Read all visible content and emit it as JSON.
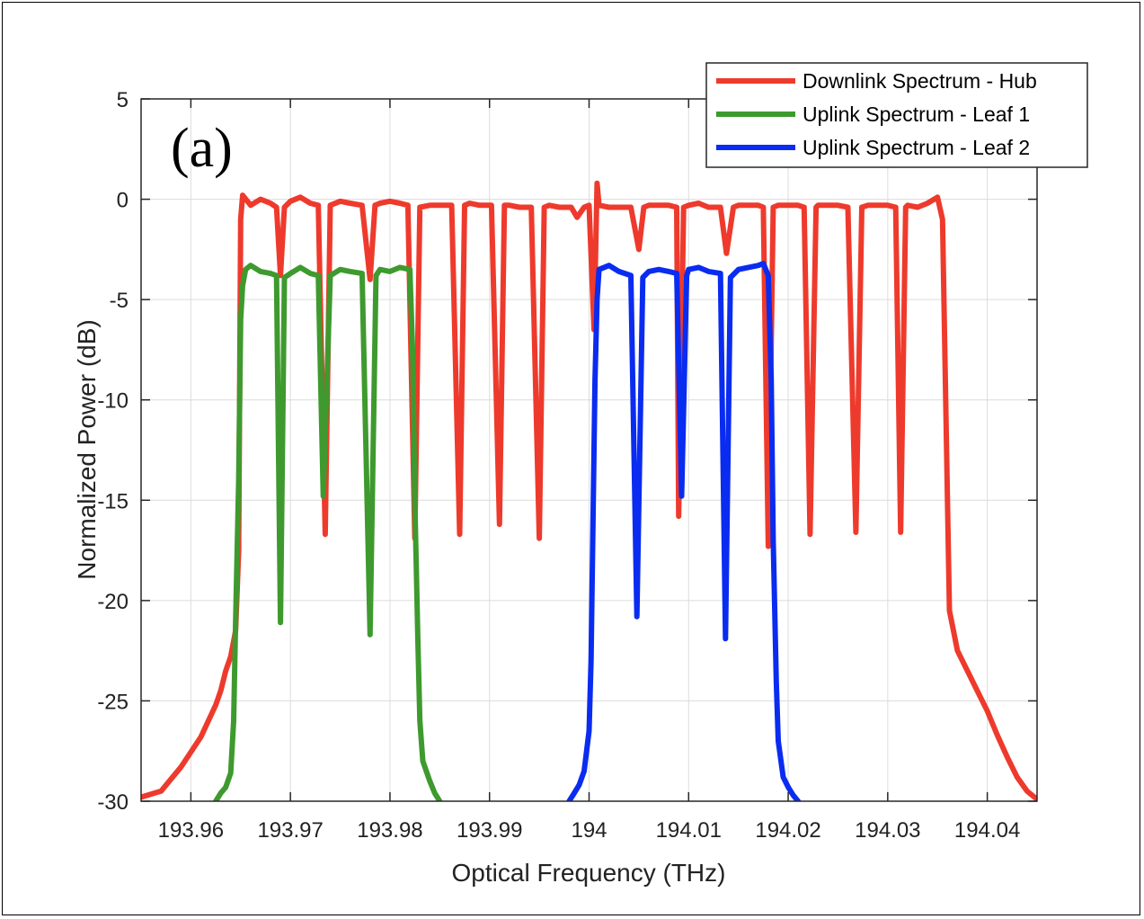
{
  "chart_data": {
    "type": "line",
    "panel_label": "(a)",
    "xlabel": "Optical Frequency (THz)",
    "ylabel": "Normalized Power (dB)",
    "xlim": [
      193.955,
      194.045
    ],
    "ylim": [
      -30,
      5
    ],
    "xticks": [
      193.96,
      193.97,
      193.98,
      193.99,
      194,
      194.01,
      194.02,
      194.03,
      194.04
    ],
    "xtick_labels": [
      "193.96",
      "193.97",
      "193.98",
      "193.99",
      "194",
      "194.01",
      "194.02",
      "194.03",
      "194.04"
    ],
    "yticks": [
      5,
      0,
      -5,
      -10,
      -15,
      -20,
      -25,
      -30
    ],
    "ytick_labels": [
      "5",
      "0",
      "-5",
      "-10",
      "-15",
      "-20",
      "-25",
      "-30"
    ],
    "grid": true,
    "legend_position": "top-right",
    "series": [
      {
        "name": "Downlink Spectrum - Hub",
        "color": "#ee3a2c",
        "points": [
          [
            193.955,
            -29.8
          ],
          [
            193.957,
            -29.5
          ],
          [
            193.959,
            -28.3
          ],
          [
            193.961,
            -26.8
          ],
          [
            193.9625,
            -25.2
          ],
          [
            193.963,
            -24.5
          ],
          [
            193.9635,
            -23.5
          ],
          [
            193.964,
            -22.8
          ],
          [
            193.9645,
            -21.5
          ],
          [
            193.9648,
            -17.5
          ],
          [
            193.965,
            -1.0
          ],
          [
            193.9652,
            0.2
          ],
          [
            193.966,
            -0.3
          ],
          [
            193.967,
            0.0
          ],
          [
            193.968,
            -0.2
          ],
          [
            193.9686,
            -0.4
          ],
          [
            193.969,
            -3.8
          ],
          [
            193.9694,
            -0.4
          ],
          [
            193.97,
            -0.1
          ],
          [
            193.971,
            0.1
          ],
          [
            193.972,
            -0.2
          ],
          [
            193.9728,
            -0.3
          ],
          [
            193.9735,
            -16.7
          ],
          [
            193.974,
            -0.3
          ],
          [
            193.975,
            -0.1
          ],
          [
            193.976,
            -0.2
          ],
          [
            193.9772,
            -0.3
          ],
          [
            193.978,
            -4.0
          ],
          [
            193.9785,
            -0.3
          ],
          [
            193.979,
            -0.2
          ],
          [
            193.98,
            -0.1
          ],
          [
            193.981,
            -0.2
          ],
          [
            193.9818,
            -0.3
          ],
          [
            193.9825,
            -16.9
          ],
          [
            193.983,
            -0.4
          ],
          [
            193.984,
            -0.3
          ],
          [
            193.985,
            -0.3
          ],
          [
            193.9862,
            -0.3
          ],
          [
            193.987,
            -16.7
          ],
          [
            193.9875,
            -0.3
          ],
          [
            193.988,
            -0.2
          ],
          [
            193.989,
            -0.3
          ],
          [
            193.9902,
            -0.3
          ],
          [
            193.991,
            -16.2
          ],
          [
            193.9915,
            -0.3
          ],
          [
            193.992,
            -0.3
          ],
          [
            193.993,
            -0.4
          ],
          [
            193.9942,
            -0.4
          ],
          [
            193.995,
            -16.9
          ],
          [
            193.9955,
            -0.4
          ],
          [
            193.996,
            -0.3
          ],
          [
            193.997,
            -0.4
          ],
          [
            193.9982,
            -0.4
          ],
          [
            193.9988,
            -0.9
          ],
          [
            193.9995,
            -0.4
          ],
          [
            194.0,
            -0.3
          ],
          [
            194.0005,
            -6.5
          ],
          [
            194.0008,
            0.8
          ],
          [
            194.001,
            -0.3
          ],
          [
            194.002,
            -0.4
          ],
          [
            194.003,
            -0.4
          ],
          [
            194.0042,
            -0.4
          ],
          [
            194.005,
            -2.5
          ],
          [
            194.0055,
            -0.4
          ],
          [
            194.006,
            -0.3
          ],
          [
            194.007,
            -0.3
          ],
          [
            194.008,
            -0.3
          ],
          [
            194.0088,
            -0.4
          ],
          [
            194.009,
            -15.8
          ],
          [
            194.0095,
            -0.4
          ],
          [
            194.01,
            -0.3
          ],
          [
            194.011,
            -0.2
          ],
          [
            194.012,
            -0.4
          ],
          [
            194.0132,
            -0.4
          ],
          [
            194.0138,
            -2.7
          ],
          [
            194.0145,
            -0.4
          ],
          [
            194.015,
            -0.3
          ],
          [
            194.016,
            -0.3
          ],
          [
            194.017,
            -0.3
          ],
          [
            194.0175,
            -0.4
          ],
          [
            194.018,
            -17.3
          ],
          [
            194.0185,
            -0.4
          ],
          [
            194.019,
            -0.3
          ],
          [
            194.02,
            -0.3
          ],
          [
            194.021,
            -0.3
          ],
          [
            194.0216,
            -0.4
          ],
          [
            194.0222,
            -16.7
          ],
          [
            194.0228,
            -0.4
          ],
          [
            194.023,
            -0.3
          ],
          [
            194.024,
            -0.3
          ],
          [
            194.025,
            -0.3
          ],
          [
            194.026,
            -0.4
          ],
          [
            194.0268,
            -16.6
          ],
          [
            194.0274,
            -0.4
          ],
          [
            194.028,
            -0.3
          ],
          [
            194.029,
            -0.3
          ],
          [
            194.03,
            -0.3
          ],
          [
            194.0308,
            -0.4
          ],
          [
            194.0313,
            -16.6
          ],
          [
            194.0318,
            -0.4
          ],
          [
            194.032,
            -0.3
          ],
          [
            194.033,
            -0.4
          ],
          [
            194.034,
            -0.2
          ],
          [
            194.035,
            0.1
          ],
          [
            194.0355,
            -1.0
          ],
          [
            194.036,
            -15.0
          ],
          [
            194.0362,
            -20.5
          ],
          [
            194.037,
            -22.5
          ],
          [
            194.038,
            -23.5
          ],
          [
            194.039,
            -24.5
          ],
          [
            194.04,
            -25.5
          ],
          [
            194.041,
            -26.7
          ],
          [
            194.042,
            -27.8
          ],
          [
            194.043,
            -28.8
          ],
          [
            194.044,
            -29.5
          ],
          [
            194.045,
            -29.9
          ]
        ]
      },
      {
        "name": "Uplink Spectrum - Leaf 1",
        "color": "#3e9a2e",
        "points": [
          [
            193.9625,
            -30.0
          ],
          [
            193.963,
            -29.6
          ],
          [
            193.9635,
            -29.3
          ],
          [
            193.964,
            -28.6
          ],
          [
            193.9643,
            -26.0
          ],
          [
            193.9645,
            -21.0
          ],
          [
            193.9648,
            -14.0
          ],
          [
            193.965,
            -6.0
          ],
          [
            193.9652,
            -4.3
          ],
          [
            193.9655,
            -3.5
          ],
          [
            193.966,
            -3.3
          ],
          [
            193.967,
            -3.6
          ],
          [
            193.968,
            -3.7
          ],
          [
            193.9686,
            -3.8
          ],
          [
            193.969,
            -21.1
          ],
          [
            193.9694,
            -3.9
          ],
          [
            193.97,
            -3.7
          ],
          [
            193.971,
            -3.4
          ],
          [
            193.972,
            -3.7
          ],
          [
            193.9728,
            -3.8
          ],
          [
            193.9733,
            -14.8
          ],
          [
            193.974,
            -3.8
          ],
          [
            193.975,
            -3.5
          ],
          [
            193.976,
            -3.6
          ],
          [
            193.9772,
            -3.7
          ],
          [
            193.978,
            -21.7
          ],
          [
            193.9786,
            -3.8
          ],
          [
            193.979,
            -3.5
          ],
          [
            193.98,
            -3.6
          ],
          [
            193.981,
            -3.4
          ],
          [
            193.982,
            -3.5
          ],
          [
            193.9823,
            -8.0
          ],
          [
            193.9825,
            -15.0
          ],
          [
            193.9828,
            -22.0
          ],
          [
            193.983,
            -26.0
          ],
          [
            193.9833,
            -28.0
          ],
          [
            193.984,
            -29.0
          ],
          [
            193.9845,
            -29.6
          ],
          [
            193.985,
            -30.0
          ]
        ]
      },
      {
        "name": "Uplink Spectrum - Leaf 2",
        "color": "#0a2cf0",
        "points": [
          [
            193.998,
            -30.0
          ],
          [
            193.9985,
            -29.6
          ],
          [
            193.999,
            -29.2
          ],
          [
            193.9995,
            -28.5
          ],
          [
            194.0,
            -26.5
          ],
          [
            194.0002,
            -23.0
          ],
          [
            194.0004,
            -16.0
          ],
          [
            194.0006,
            -9.0
          ],
          [
            194.0008,
            -5.0
          ],
          [
            194.001,
            -3.5
          ],
          [
            194.002,
            -3.3
          ],
          [
            194.003,
            -3.6
          ],
          [
            194.0042,
            -3.8
          ],
          [
            194.0048,
            -20.8
          ],
          [
            194.0054,
            -3.9
          ],
          [
            194.006,
            -3.6
          ],
          [
            194.007,
            -3.5
          ],
          [
            194.008,
            -3.6
          ],
          [
            194.0088,
            -3.7
          ],
          [
            194.0093,
            -14.8
          ],
          [
            194.0098,
            -3.8
          ],
          [
            194.01,
            -3.5
          ],
          [
            194.011,
            -3.4
          ],
          [
            194.012,
            -3.6
          ],
          [
            194.0132,
            -3.7
          ],
          [
            194.0137,
            -21.9
          ],
          [
            194.0142,
            -3.9
          ],
          [
            194.015,
            -3.5
          ],
          [
            194.016,
            -3.4
          ],
          [
            194.017,
            -3.3
          ],
          [
            194.0175,
            -3.2
          ],
          [
            194.018,
            -3.8
          ],
          [
            194.0183,
            -9.0
          ],
          [
            194.0185,
            -17.0
          ],
          [
            194.0188,
            -24.0
          ],
          [
            194.019,
            -27.0
          ],
          [
            194.0195,
            -28.8
          ],
          [
            194.02,
            -29.3
          ],
          [
            194.0205,
            -29.7
          ],
          [
            194.021,
            -30.0
          ]
        ]
      }
    ]
  }
}
